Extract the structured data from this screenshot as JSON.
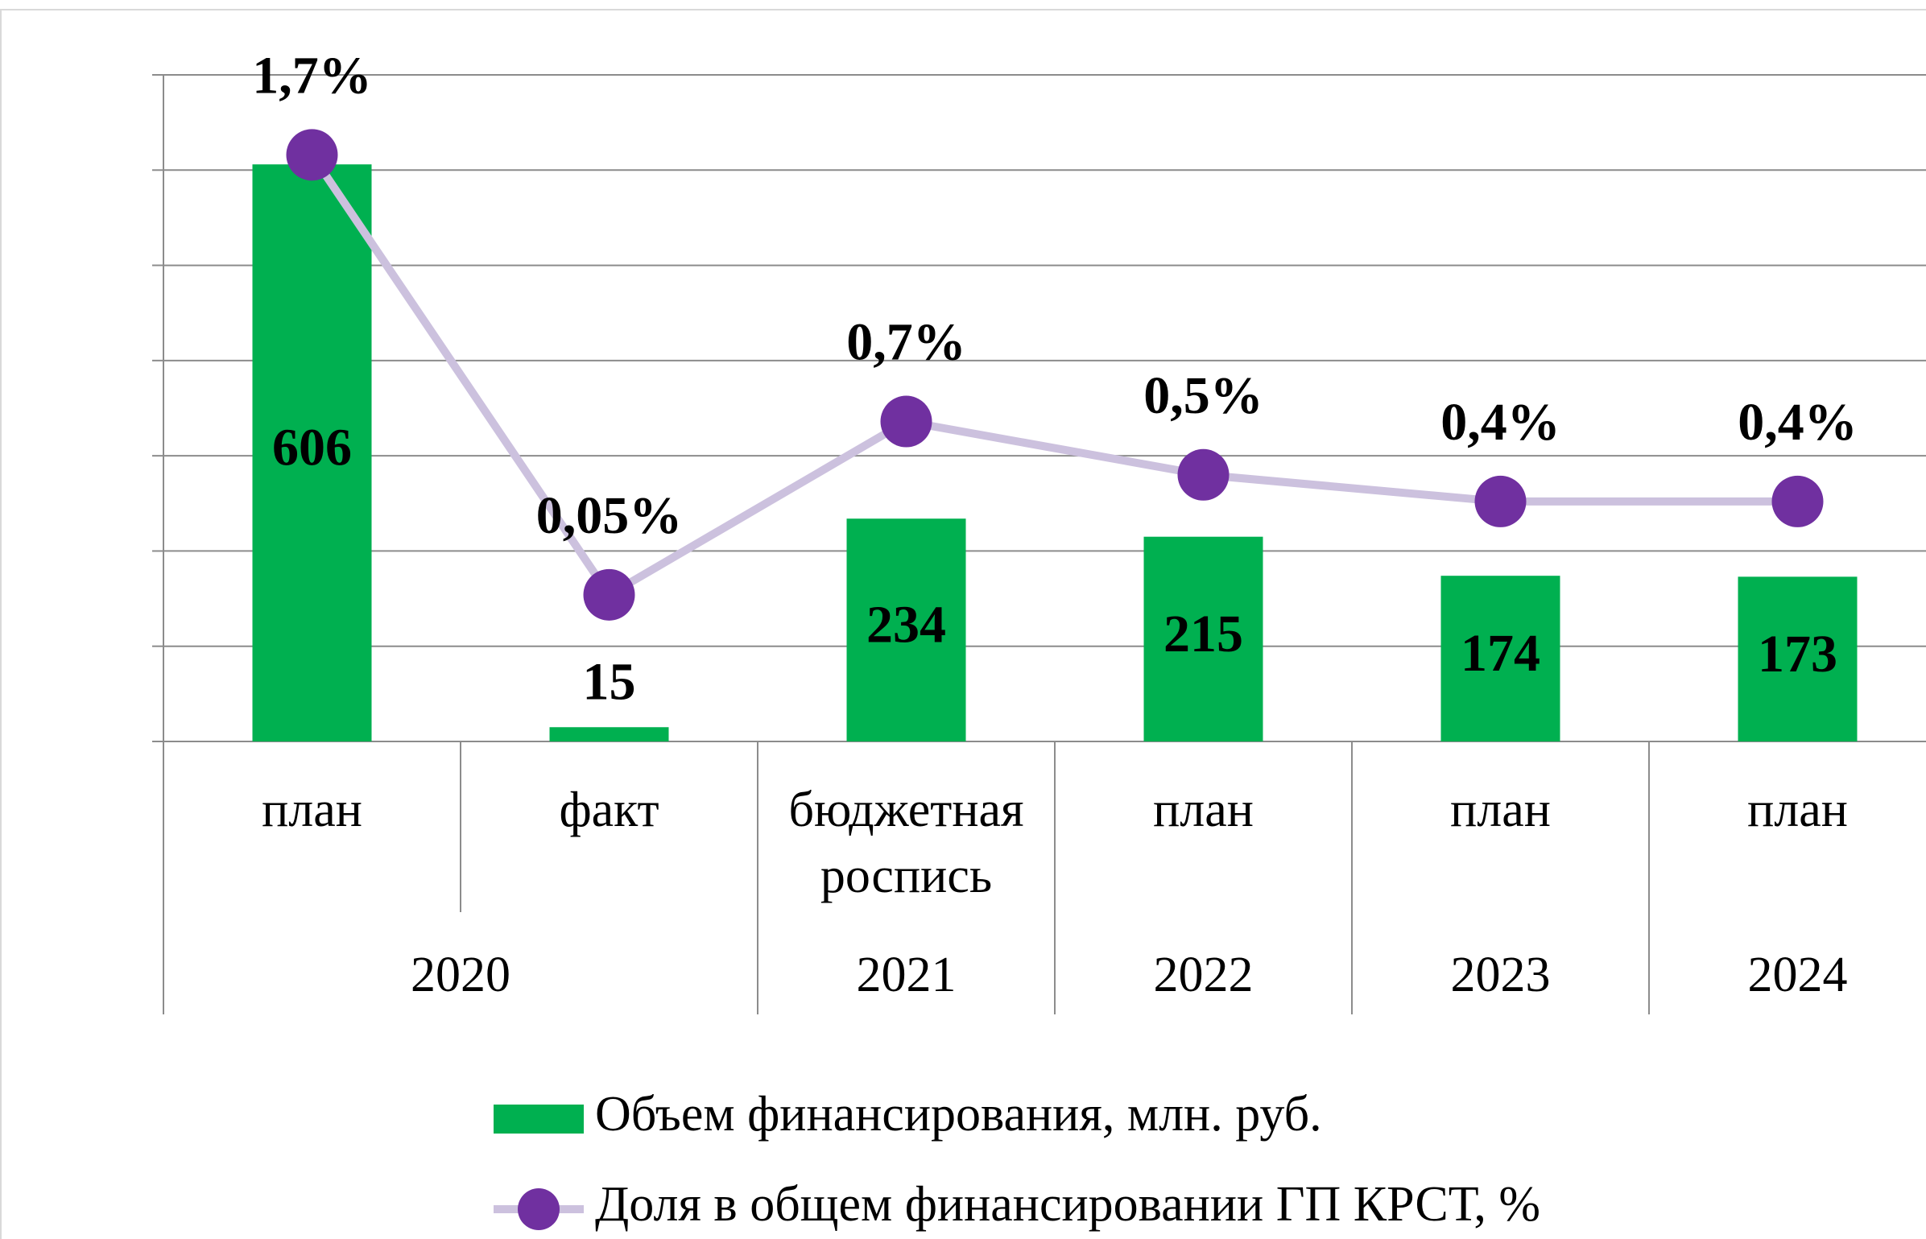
{
  "chart_data": {
    "type": "bar_line",
    "groups": [
      {
        "name": "2020",
        "categories": [
          "план",
          "факт"
        ]
      },
      {
        "name": "2021",
        "categories": [
          "бюджетная роспись"
        ]
      },
      {
        "name": "2022",
        "categories": [
          "план"
        ]
      },
      {
        "name": "2023",
        "categories": [
          "план"
        ]
      },
      {
        "name": "2024",
        "categories": [
          "план"
        ]
      }
    ],
    "series": [
      {
        "name": "Объем финансирования, млн. руб.",
        "type": "bar",
        "color": "#00b050",
        "values": [
          606,
          15,
          234,
          215,
          174,
          173
        ]
      },
      {
        "name": "Доля в общем финансировании ГП КРСТ, %",
        "type": "line",
        "axis": "y2",
        "color": "#ccc1de",
        "marker_color": "#7030a0",
        "values": [
          1.7,
          0.05,
          0.7,
          0.5,
          0.4,
          0.4
        ],
        "value_labels": [
          "1,7%",
          "0,05%",
          "0,7%",
          "0,5%",
          "0,4%",
          "0,4%"
        ]
      }
    ],
    "ylim": [
      0,
      700
    ],
    "yticks": [
      0,
      100,
      200,
      300,
      400,
      500,
      600,
      700
    ],
    "y2lim": [
      -0.5,
      2
    ],
    "grid": true,
    "legend": "bottom"
  }
}
